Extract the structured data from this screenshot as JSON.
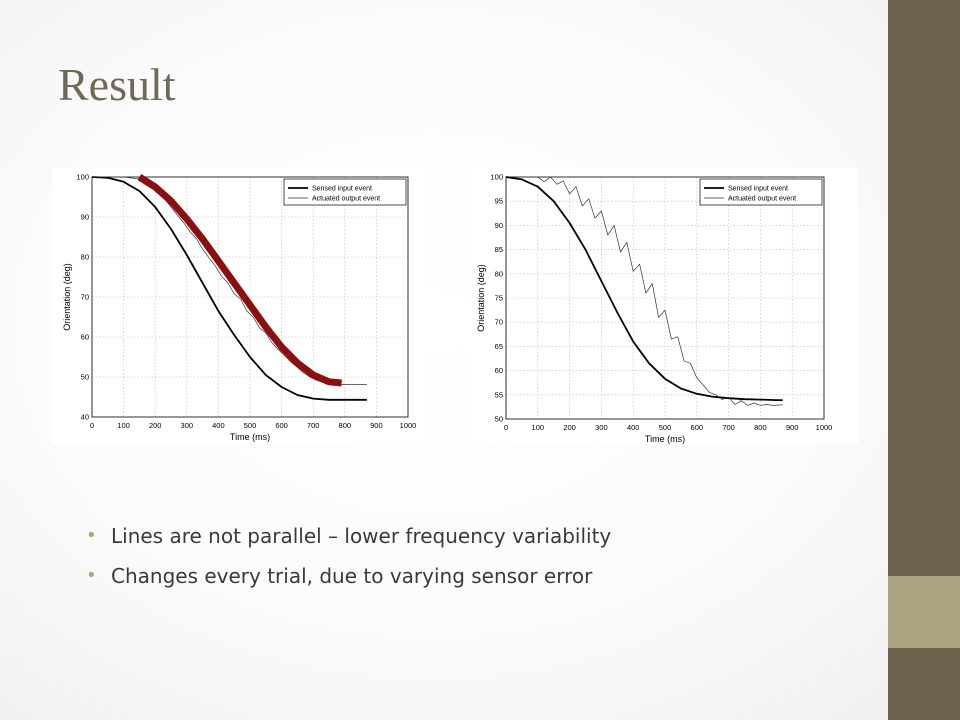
{
  "slide": {
    "title": "Result",
    "bullets": [
      "Lines are not parallel – lower frequency variability",
      "Changes every trial, due to varying sensor error"
    ]
  },
  "colors": {
    "sidebar_dark": "#6b614d",
    "sidebar_light": "#a9a47f",
    "title": "#6e6a55",
    "highlight": "#8b0f0f"
  },
  "chart_data": [
    {
      "type": "line",
      "xlabel": "Time (ms)",
      "ylabel": "Orientation (deg)",
      "xlim": [
        0,
        1000
      ],
      "ylim": [
        40,
        100
      ],
      "xticks": [
        0,
        100,
        200,
        300,
        400,
        500,
        600,
        700,
        800,
        900,
        1000
      ],
      "yticks": [
        40,
        50,
        60,
        70,
        80,
        90,
        100
      ],
      "grid": true,
      "legend": "top-right",
      "series": [
        {
          "name": "Sensed input event",
          "style": "thick",
          "x": [
            0,
            50,
            100,
            150,
            200,
            250,
            300,
            350,
            400,
            450,
            500,
            550,
            600,
            650,
            700,
            750,
            800,
            850,
            870
          ],
          "y": [
            100,
            99.8,
            98.8,
            96.5,
            92.5,
            87,
            80.5,
            73.5,
            66.5,
            60.5,
            55,
            50.5,
            47.5,
            45.5,
            44.6,
            44.3,
            44.3,
            44.3,
            44.3
          ]
        },
        {
          "name": "Actuated output event",
          "style": "thin",
          "x": [
            0,
            100,
            150,
            170,
            185,
            200,
            215,
            230,
            250,
            270,
            290,
            310,
            330,
            350,
            370,
            390,
            410,
            430,
            450,
            470,
            490,
            510,
            530,
            550,
            570,
            590,
            610,
            630,
            650,
            670,
            690,
            710,
            730,
            750,
            770,
            790,
            810,
            830,
            850,
            870
          ],
          "y": [
            100,
            100,
            99.5,
            98.3,
            98.6,
            96.5,
            97,
            94.5,
            92.5,
            90.5,
            88.6,
            86.3,
            84.6,
            82,
            79.8,
            77.8,
            75.2,
            73.5,
            70.8,
            69.5,
            66.5,
            65,
            62.3,
            61,
            58.5,
            56.8,
            55.3,
            53.7,
            52.4,
            51,
            50,
            49.2,
            48.7,
            48.4,
            48.2,
            48.1,
            48.1,
            48.1,
            48.1,
            48.1
          ]
        }
      ],
      "annotation": {
        "type": "highlight-overlay",
        "x": [
          150,
          200,
          250,
          300,
          350,
          400,
          450,
          500,
          550,
          600,
          650,
          700,
          750,
          790
        ],
        "y": [
          100,
          97.5,
          94,
          89.5,
          84.5,
          79,
          73.5,
          68,
          62.5,
          57.5,
          53.5,
          50.5,
          48.8,
          48.5
        ]
      }
    },
    {
      "type": "line",
      "xlabel": "Time (ms)",
      "ylabel": "Orientation (deg)",
      "xlim": [
        0,
        1000
      ],
      "ylim": [
        50,
        100
      ],
      "xticks": [
        0,
        100,
        200,
        300,
        400,
        500,
        600,
        700,
        800,
        900,
        1000
      ],
      "yticks": [
        50,
        55,
        60,
        65,
        70,
        75,
        80,
        85,
        90,
        95,
        100
      ],
      "grid": true,
      "legend": "top-right",
      "series": [
        {
          "name": "Sensed input event",
          "style": "thick",
          "x": [
            0,
            50,
            100,
            150,
            200,
            250,
            300,
            350,
            400,
            450,
            500,
            550,
            600,
            650,
            700,
            750,
            800,
            850,
            870
          ],
          "y": [
            100,
            99.5,
            98,
            95,
            90.5,
            85,
            78.5,
            72,
            66,
            61.5,
            58.3,
            56.3,
            55.2,
            54.6,
            54.3,
            54.1,
            54,
            53.9,
            53.9
          ]
        },
        {
          "name": "Actuated output event",
          "style": "thin",
          "x": [
            100,
            120,
            140,
            160,
            180,
            200,
            220,
            240,
            260,
            280,
            300,
            320,
            340,
            360,
            380,
            400,
            420,
            440,
            460,
            480,
            500,
            520,
            540,
            560,
            580,
            600,
            620,
            640,
            660,
            680,
            700,
            720,
            740,
            760,
            780,
            800,
            820,
            840,
            860,
            870
          ],
          "y": [
            100,
            99,
            100,
            98.5,
            99.2,
            96.5,
            98,
            94,
            95.5,
            91.5,
            93,
            88,
            90,
            84.5,
            86.5,
            80.5,
            82,
            76,
            78,
            71,
            72.5,
            66.5,
            67,
            62,
            61.5,
            58.5,
            57,
            55.5,
            55,
            54,
            54.5,
            53,
            53.8,
            52.8,
            53.3,
            52.8,
            53,
            52.8,
            52.9,
            52.9
          ]
        }
      ]
    }
  ]
}
